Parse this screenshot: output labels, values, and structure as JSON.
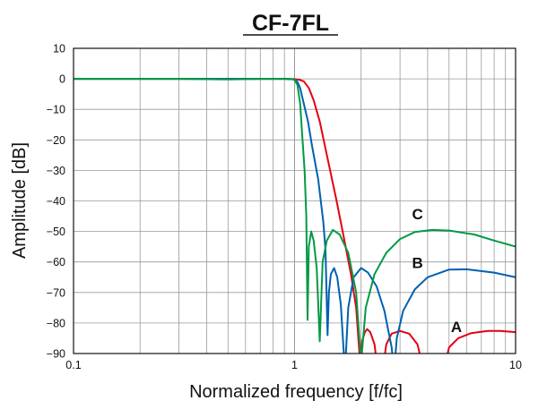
{
  "chart_data": {
    "type": "line",
    "title": "CF-7FL",
    "xlabel": "Normalized frequency [f/fc]",
    "ylabel": "Amplitude [dB]",
    "xscale": "log",
    "xlim": [
      0.1,
      10
    ],
    "ylim": [
      -90,
      10
    ],
    "grid": true,
    "xticks": [
      {
        "v": 0.1,
        "label": "0.1"
      },
      {
        "v": 1,
        "label": "1"
      },
      {
        "v": 10,
        "label": "10"
      }
    ],
    "yticks": [
      {
        "v": 10,
        "label": "10"
      },
      {
        "v": 0,
        "label": "0"
      },
      {
        "v": -10,
        "label": "−10"
      },
      {
        "v": -20,
        "label": "−20"
      },
      {
        "v": -30,
        "label": "−30"
      },
      {
        "v": -40,
        "label": "−40"
      },
      {
        "v": -50,
        "label": "−50"
      },
      {
        "v": -60,
        "label": "−60"
      },
      {
        "v": -70,
        "label": "−70"
      },
      {
        "v": -80,
        "label": "−80"
      },
      {
        "v": -90,
        "label": "−90"
      }
    ],
    "series": [
      {
        "name": "A",
        "color": "#e60012",
        "label_at": [
          5.4,
          -83
        ],
        "points": [
          [
            0.1,
            0
          ],
          [
            0.5,
            0
          ],
          [
            0.9,
            0
          ],
          [
            1.0,
            -0.1
          ],
          [
            1.05,
            -0.3
          ],
          [
            1.1,
            -0.8
          ],
          [
            1.16,
            -3
          ],
          [
            1.22,
            -7
          ],
          [
            1.3,
            -14
          ],
          [
            1.42,
            -27
          ],
          [
            1.55,
            -40
          ],
          [
            1.66,
            -51
          ],
          [
            1.8,
            -64
          ],
          [
            1.9,
            -75
          ],
          [
            1.98,
            -93
          ],
          [
            2.02,
            -86
          ],
          [
            2.08,
            -83
          ],
          [
            2.13,
            -82
          ],
          [
            2.2,
            -83
          ],
          [
            2.3,
            -87
          ],
          [
            2.38,
            -96
          ],
          [
            2.5,
            -96
          ],
          [
            2.6,
            -87
          ],
          [
            2.75,
            -83.5
          ],
          [
            3.0,
            -82.6
          ],
          [
            3.3,
            -83.5
          ],
          [
            3.6,
            -87
          ],
          [
            3.85,
            -96
          ],
          [
            4.7,
            -96
          ],
          [
            5.0,
            -88
          ],
          [
            5.5,
            -85
          ],
          [
            6.3,
            -83.3
          ],
          [
            7.5,
            -82.6
          ],
          [
            8.5,
            -82.6
          ],
          [
            10,
            -83
          ]
        ]
      },
      {
        "name": "B",
        "color": "#0060b0",
        "label_at": [
          3.6,
          -62
        ],
        "points": [
          [
            0.1,
            0
          ],
          [
            0.9,
            0
          ],
          [
            1.0,
            -0.2
          ],
          [
            1.03,
            -1
          ],
          [
            1.06,
            -3
          ],
          [
            1.1,
            -8
          ],
          [
            1.15,
            -14
          ],
          [
            1.2,
            -22
          ],
          [
            1.28,
            -33
          ],
          [
            1.35,
            -47
          ],
          [
            1.38,
            -56
          ],
          [
            1.41,
            -84
          ],
          [
            1.43,
            -70
          ],
          [
            1.46,
            -64
          ],
          [
            1.51,
            -62
          ],
          [
            1.56,
            -65
          ],
          [
            1.62,
            -74
          ],
          [
            1.69,
            -96
          ],
          [
            1.75,
            -75
          ],
          [
            1.85,
            -65
          ],
          [
            2.0,
            -62
          ],
          [
            2.15,
            -63.5
          ],
          [
            2.35,
            -68
          ],
          [
            2.55,
            -76
          ],
          [
            2.75,
            -88
          ],
          [
            2.82,
            -96
          ],
          [
            2.9,
            -85
          ],
          [
            3.1,
            -76
          ],
          [
            3.5,
            -69
          ],
          [
            4,
            -65
          ],
          [
            5,
            -62.5
          ],
          [
            6,
            -62.4
          ],
          [
            8,
            -63.5
          ],
          [
            10,
            -65
          ]
        ]
      },
      {
        "name": "C",
        "color": "#009a44",
        "label_at": [
          3.6,
          -46
        ],
        "points": [
          [
            0.1,
            0
          ],
          [
            0.3,
            0
          ],
          [
            0.5,
            -0.2
          ],
          [
            0.7,
            0
          ],
          [
            0.95,
            0
          ],
          [
            1.0,
            -0.3
          ],
          [
            1.03,
            -2
          ],
          [
            1.06,
            -8
          ],
          [
            1.08,
            -17
          ],
          [
            1.11,
            -30
          ],
          [
            1.13,
            -45
          ],
          [
            1.145,
            -79
          ],
          [
            1.16,
            -55
          ],
          [
            1.19,
            -50
          ],
          [
            1.22,
            -53
          ],
          [
            1.26,
            -62
          ],
          [
            1.3,
            -86
          ],
          [
            1.34,
            -60
          ],
          [
            1.4,
            -53
          ],
          [
            1.49,
            -49.5
          ],
          [
            1.6,
            -51
          ],
          [
            1.75,
            -57
          ],
          [
            1.9,
            -70
          ],
          [
            2.0,
            -93
          ],
          [
            2.1,
            -75
          ],
          [
            2.3,
            -64
          ],
          [
            2.6,
            -57
          ],
          [
            3,
            -52.5
          ],
          [
            3.5,
            -50.2
          ],
          [
            4.2,
            -49.5
          ],
          [
            5,
            -49.7
          ],
          [
            6.5,
            -51
          ],
          [
            8,
            -53
          ],
          [
            10,
            -55
          ]
        ]
      }
    ]
  }
}
